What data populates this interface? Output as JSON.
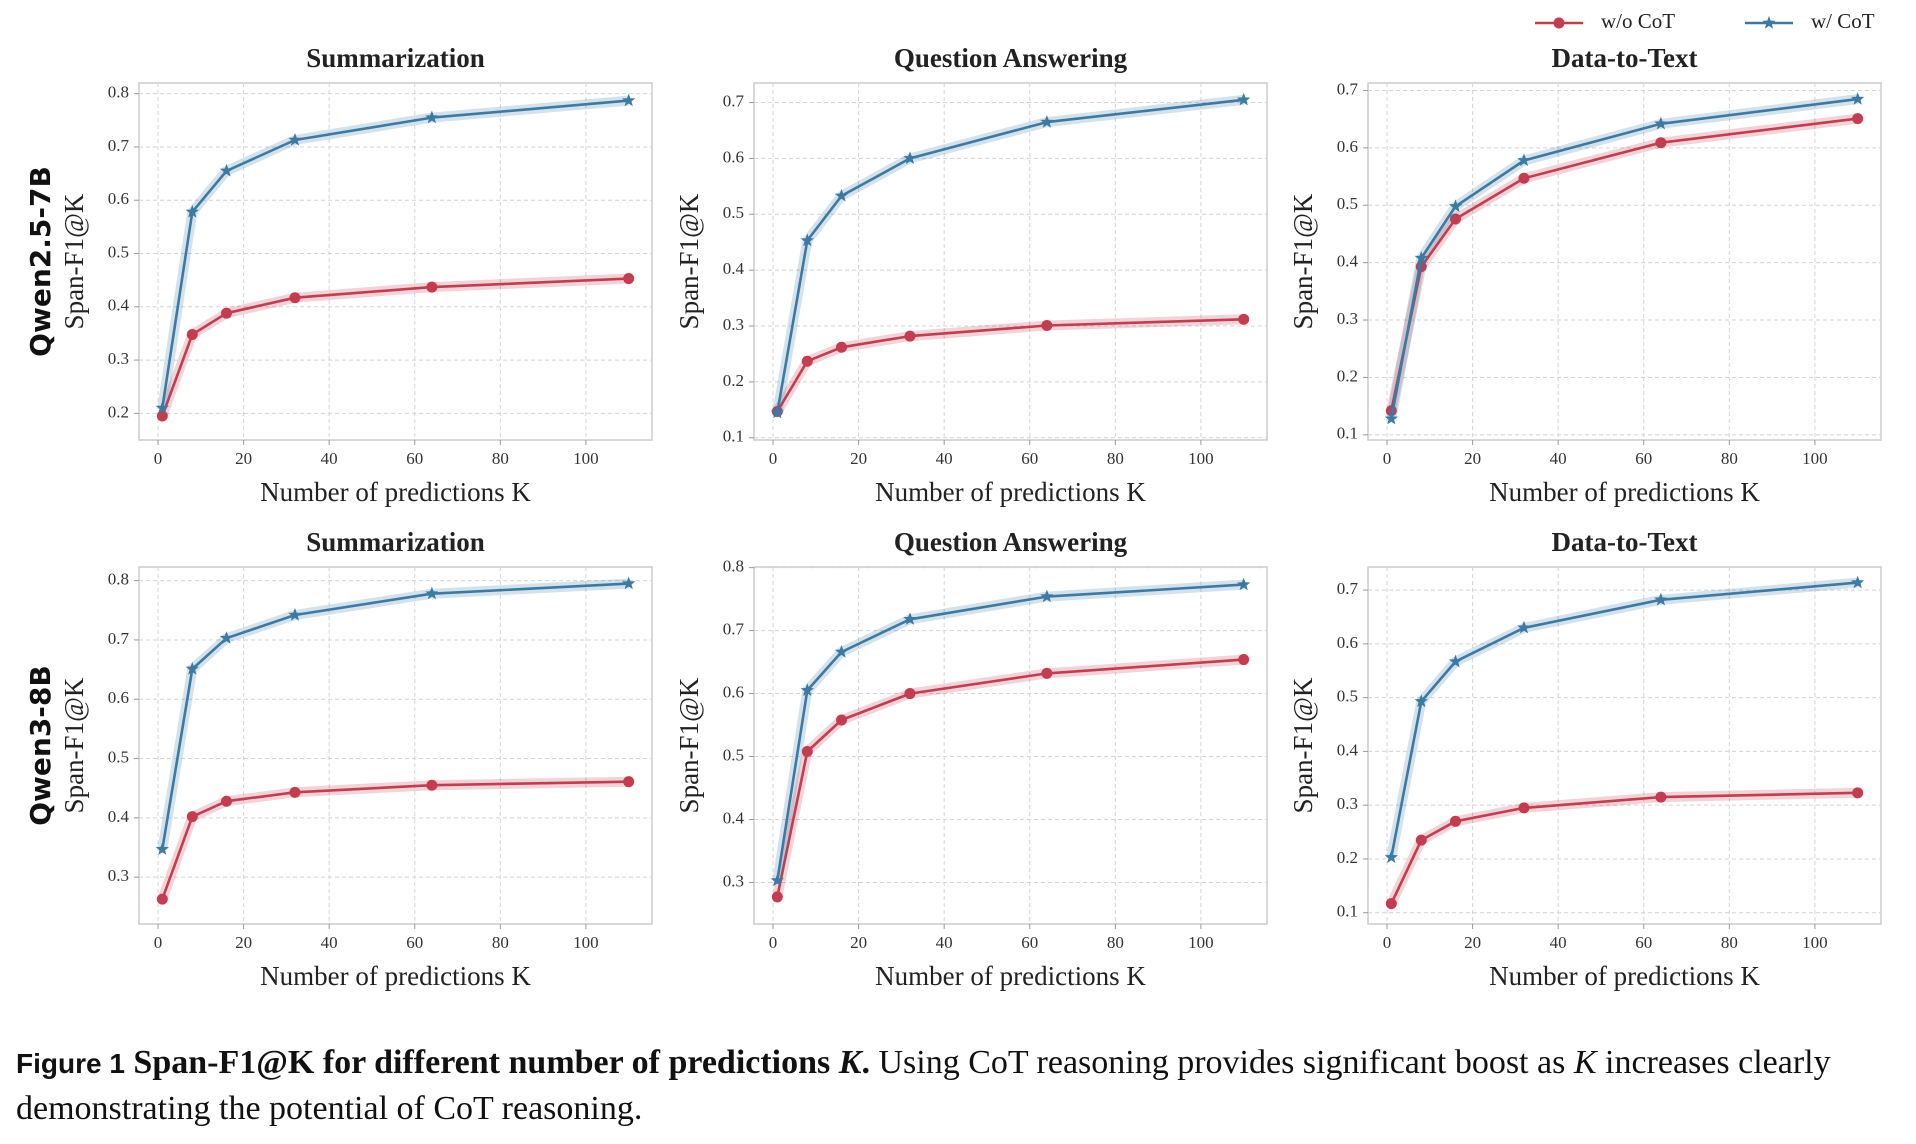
{
  "row_labels": [
    "Qwen2.5-7B",
    "Qwen3-8B"
  ],
  "legend": {
    "position": "upper right"
  },
  "caption": {
    "label": "Figure 1",
    "title": "Span-F1@K for different number of predictions",
    "title_var": "K",
    "title_end": ".",
    "text_1": "Using CoT reasoning provides significant boost as",
    "text_var": "K",
    "text_2": "increases clearly demonstrating the potential of CoT reasoning."
  },
  "chart_data": [
    {
      "type": "line",
      "title": "Summarization",
      "x_label": "Number of predictions K",
      "y_label": "Span-F1@K",
      "grid": true,
      "x": [
        1,
        8,
        16,
        32,
        64,
        110
      ],
      "xlim": [
        -4.45,
        115.45
      ],
      "xticks": [
        0,
        20,
        40,
        60,
        80,
        100
      ],
      "ylim": [
        0.15,
        0.82
      ],
      "yticks": [
        0.2,
        0.3,
        0.4,
        0.5,
        0.6,
        0.7,
        0.8
      ],
      "series": [
        {
          "name": "w/o CoT",
          "color": "#c43c4e",
          "marker": "circle",
          "values": [
            0.195,
            0.348,
            0.388,
            0.417,
            0.437,
            0.453
          ]
        },
        {
          "name": "w/ CoT",
          "color": "#3b7aa3",
          "marker": "star",
          "values": [
            0.21,
            0.578,
            0.655,
            0.713,
            0.755,
            0.787
          ]
        }
      ]
    },
    {
      "type": "line",
      "title": "Question Answering",
      "x_label": "Number of predictions K",
      "y_label": "Span-F1@K",
      "grid": true,
      "x": [
        1,
        8,
        16,
        32,
        64,
        110
      ],
      "xlim": [
        -4.45,
        115.45
      ],
      "xticks": [
        0,
        20,
        40,
        60,
        80,
        100
      ],
      "ylim": [
        0.096,
        0.735
      ],
      "yticks": [
        0.1,
        0.2,
        0.3,
        0.4,
        0.5,
        0.6,
        0.7
      ],
      "series": [
        {
          "name": "w/o CoT",
          "color": "#c43c4e",
          "marker": "circle",
          "values": [
            0.147,
            0.237,
            0.262,
            0.282,
            0.301,
            0.312
          ]
        },
        {
          "name": "w/ CoT",
          "color": "#3b7aa3",
          "marker": "star",
          "values": [
            0.145,
            0.453,
            0.533,
            0.6,
            0.665,
            0.705
          ]
        }
      ]
    },
    {
      "type": "line",
      "title": "Data-to-Text",
      "x_label": "Number of predictions K",
      "y_label": "Span-F1@K",
      "grid": true,
      "x": [
        1,
        8,
        16,
        32,
        64,
        110
      ],
      "xlim": [
        -4.45,
        115.45
      ],
      "xticks": [
        0,
        20,
        40,
        60,
        80,
        100
      ],
      "ylim": [
        0.091,
        0.713
      ],
      "yticks": [
        0.1,
        0.2,
        0.3,
        0.4,
        0.5,
        0.6,
        0.7
      ],
      "series": [
        {
          "name": "w/o CoT",
          "color": "#c43c4e",
          "marker": "circle",
          "values": [
            0.142,
            0.393,
            0.476,
            0.547,
            0.609,
            0.651
          ]
        },
        {
          "name": "w/ CoT",
          "color": "#3b7aa3",
          "marker": "star",
          "values": [
            0.128,
            0.408,
            0.498,
            0.578,
            0.642,
            0.685
          ]
        }
      ]
    },
    {
      "type": "line",
      "title": "Summarization",
      "x_label": "Number of predictions K",
      "y_label": "Span-F1@K",
      "grid": true,
      "x": [
        1,
        8,
        16,
        32,
        64,
        110
      ],
      "xlim": [
        -4.45,
        115.45
      ],
      "xticks": [
        0,
        20,
        40,
        60,
        80,
        100
      ],
      "ylim": [
        0.221,
        0.823
      ],
      "yticks": [
        0.3,
        0.4,
        0.5,
        0.6,
        0.7,
        0.8
      ],
      "series": [
        {
          "name": "w/o CoT",
          "color": "#c43c4e",
          "marker": "circle",
          "values": [
            0.263,
            0.402,
            0.428,
            0.443,
            0.455,
            0.461
          ]
        },
        {
          "name": "w/ CoT",
          "color": "#3b7aa3",
          "marker": "star",
          "values": [
            0.347,
            0.651,
            0.703,
            0.742,
            0.778,
            0.795
          ]
        }
      ]
    },
    {
      "type": "line",
      "title": "Question Answering",
      "x_label": "Number of predictions K",
      "y_label": "Span-F1@K",
      "grid": true,
      "x": [
        1,
        8,
        16,
        32,
        64,
        110
      ],
      "xlim": [
        -4.45,
        115.45
      ],
      "xticks": [
        0,
        20,
        40,
        60,
        80,
        100
      ],
      "ylim": [
        0.234,
        0.801
      ],
      "yticks": [
        0.3,
        0.4,
        0.5,
        0.6,
        0.7,
        0.8
      ],
      "series": [
        {
          "name": "w/o CoT",
          "color": "#c43c4e",
          "marker": "circle",
          "values": [
            0.277,
            0.508,
            0.558,
            0.6,
            0.632,
            0.654
          ]
        },
        {
          "name": "w/ CoT",
          "color": "#3b7aa3",
          "marker": "star",
          "values": [
            0.303,
            0.605,
            0.666,
            0.718,
            0.754,
            0.773
          ]
        }
      ]
    },
    {
      "type": "line",
      "title": "Data-to-Text",
      "x_label": "Number of predictions K",
      "y_label": "Span-F1@K",
      "grid": true,
      "x": [
        1,
        8,
        16,
        32,
        64,
        110
      ],
      "xlim": [
        -4.45,
        115.45
      ],
      "xticks": [
        0,
        20,
        40,
        60,
        80,
        100
      ],
      "ylim": [
        0.079,
        0.743
      ],
      "yticks": [
        0.1,
        0.2,
        0.3,
        0.4,
        0.5,
        0.6,
        0.7
      ],
      "series": [
        {
          "name": "w/o CoT",
          "color": "#c43c4e",
          "marker": "circle",
          "values": [
            0.117,
            0.235,
            0.27,
            0.295,
            0.315,
            0.323
          ]
        },
        {
          "name": "w/ CoT",
          "color": "#3b7aa3",
          "marker": "star",
          "values": [
            0.203,
            0.493,
            0.567,
            0.63,
            0.682,
            0.714
          ]
        }
      ]
    }
  ]
}
